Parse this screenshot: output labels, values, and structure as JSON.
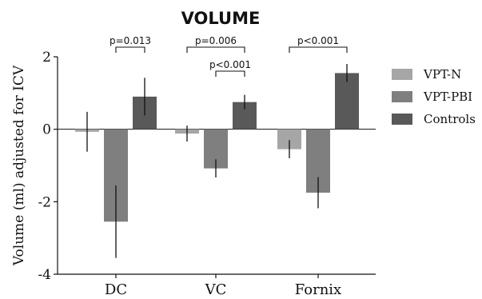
{
  "chart_data": {
    "type": "bar",
    "title": "VOLUME",
    "xlabel": "",
    "ylabel": "Volume (ml) adjusted for ICV",
    "ylim": [
      -4,
      2
    ],
    "yticks": [
      2,
      0,
      -2,
      -4
    ],
    "categories": [
      "DC",
      "VC",
      "Fornix"
    ],
    "series": [
      {
        "name": "VPT-N",
        "color": "#a6a6a6",
        "values": [
          -0.07,
          -0.12,
          -0.55
        ],
        "errors": [
          0.55,
          0.22,
          0.25
        ]
      },
      {
        "name": "VPT-PBI",
        "color": "#7f7f7f",
        "values": [
          -2.55,
          -1.08,
          -1.75
        ],
        "errors": [
          1.0,
          0.25,
          0.43
        ]
      },
      {
        "name": "Controls",
        "color": "#595959",
        "values": [
          0.9,
          0.75,
          1.55
        ],
        "errors": [
          0.52,
          0.2,
          0.25
        ]
      }
    ],
    "legend_position": "right",
    "grid": false,
    "annotations": [
      {
        "label": "p=0.013",
        "category": "DC",
        "from": 1,
        "to": 2,
        "level": 0
      },
      {
        "label": "p=0.006",
        "category": "VC",
        "from": 0,
        "to": 2,
        "level": 0
      },
      {
        "label": "p<0.001",
        "category": "VC",
        "from": 1,
        "to": 2,
        "level": 1
      },
      {
        "label": "p<0.001",
        "category": "Fornix",
        "from": 0,
        "to": 2,
        "level": 0
      }
    ]
  }
}
